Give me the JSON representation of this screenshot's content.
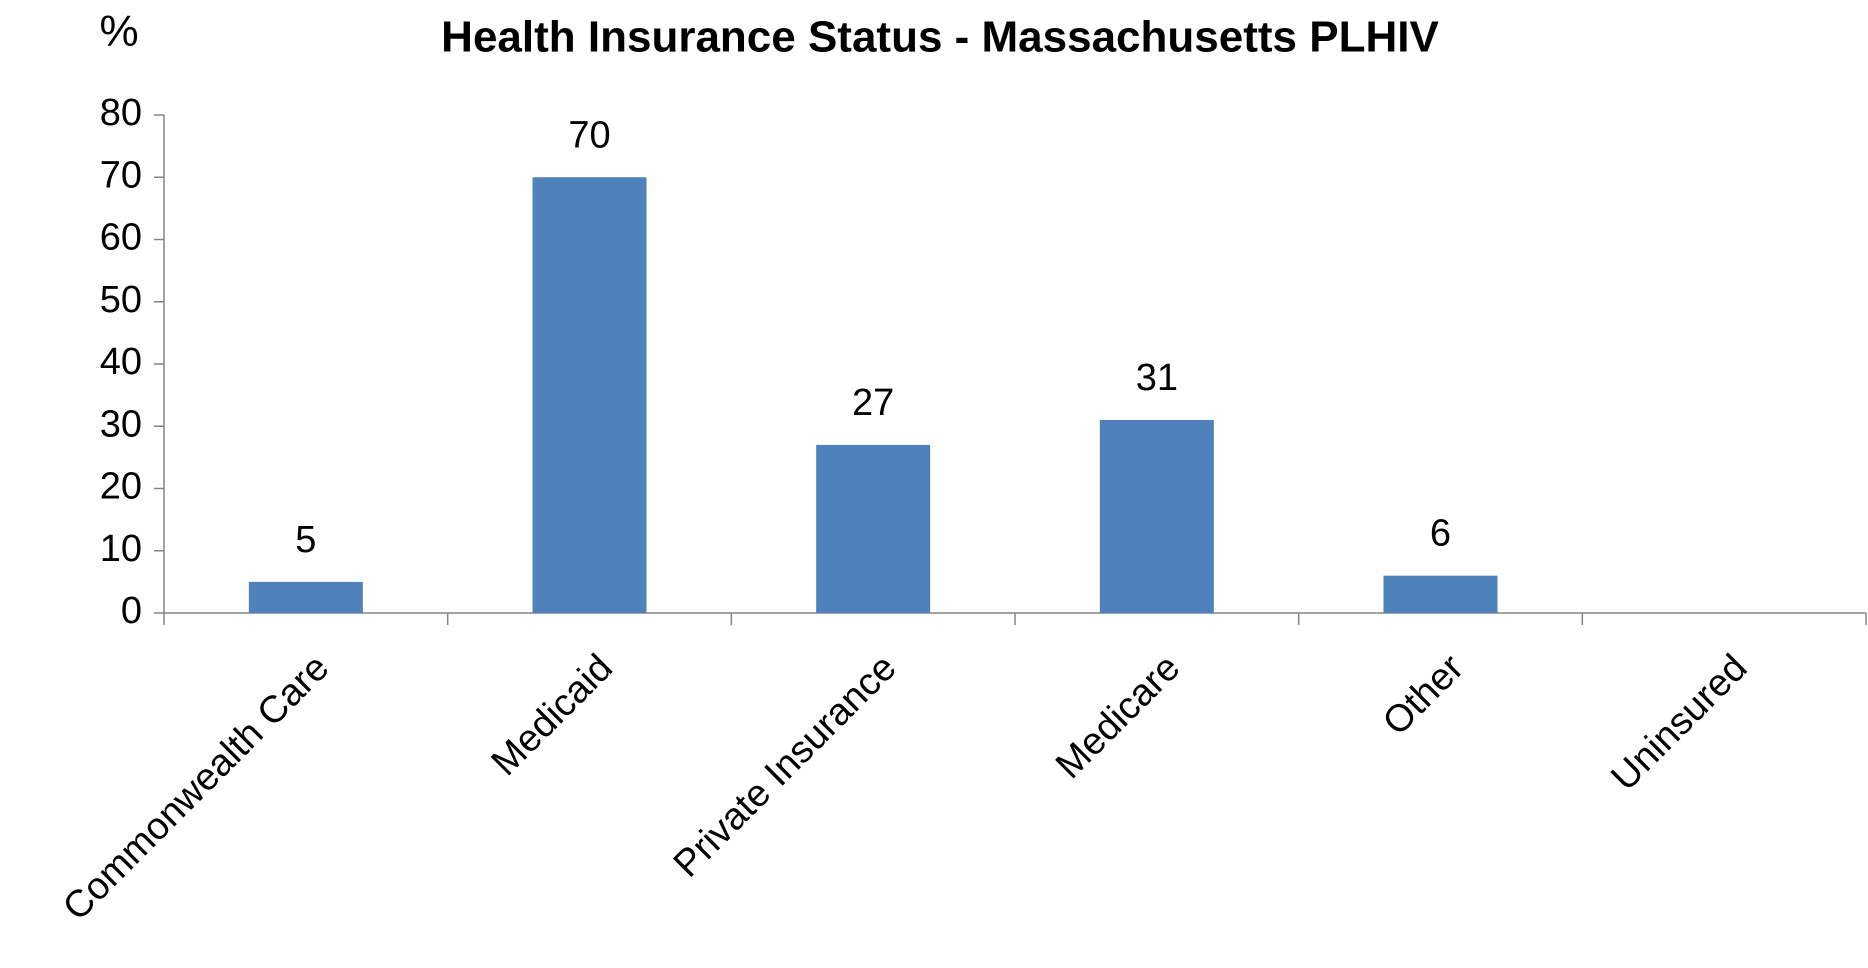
{
  "chart_data": {
    "type": "bar",
    "title": "Health Insurance Status - Massachusetts PLHIV",
    "y_label": "%",
    "categories": [
      "Commonwealth Care",
      "Medicaid",
      "Private Insurance",
      "Medicare",
      "Other",
      "Uninsured"
    ],
    "values": [
      5,
      70,
      27,
      31,
      6,
      null
    ],
    "color": "#4f81bd",
    "ylim": [
      0,
      80
    ],
    "yticks": [
      0,
      10,
      20,
      30,
      40,
      50,
      60,
      70,
      80
    ],
    "grid": false
  }
}
